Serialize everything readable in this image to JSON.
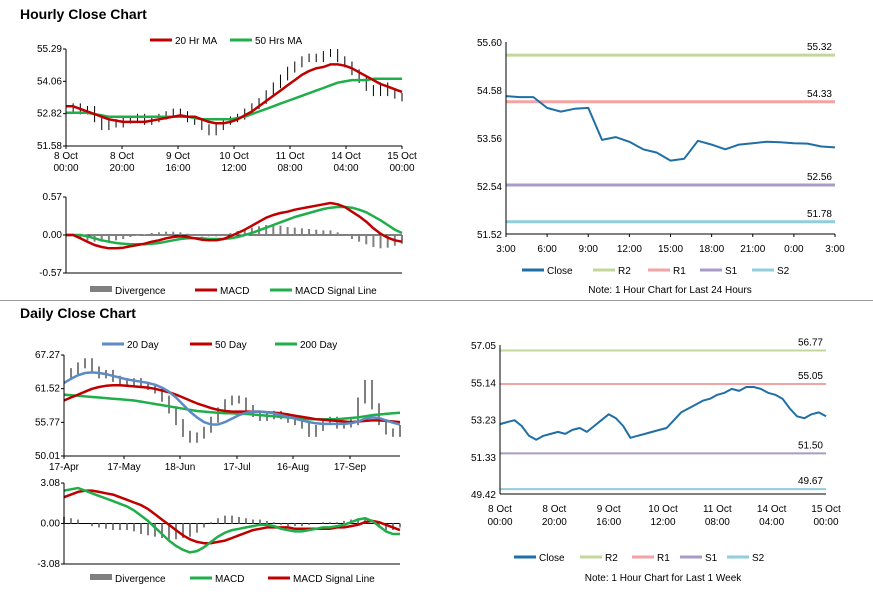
{
  "sections": {
    "hourly_title": "Hourly Close Chart",
    "daily_title": "Daily Close Chart"
  },
  "colors": {
    "red": "#c00000",
    "green": "#1fae4a",
    "blue": "#1f6fa6",
    "steel": "#5b8bc5",
    "gray": "#808080",
    "r2": "#c4d79b",
    "r1": "#f2a4a4",
    "s1": "#a99bc7",
    "s2": "#92cddc",
    "axis": "#000000"
  },
  "chart_data": [
    {
      "id": "hourly-price",
      "type": "line",
      "legend": [
        "20 Hr MA",
        "50 Hrs MA"
      ],
      "yticks": [
        "55.29",
        "54.06",
        "52.82",
        "51.58"
      ],
      "ylim": [
        51.58,
        55.29
      ],
      "xticks": [
        [
          "8 Oct",
          "00:00"
        ],
        [
          "8 Oct",
          "20:00"
        ],
        [
          "9 Oct",
          "16:00"
        ],
        [
          "10 Oct",
          "12:00"
        ],
        [
          "11 Oct",
          "08:00"
        ],
        [
          "14 Oct",
          "04:00"
        ],
        [
          "15 Oct",
          "00:00"
        ]
      ],
      "close": [
        53.0,
        53.1,
        52.9,
        53.0,
        52.6,
        52.3,
        52.5,
        52.4,
        52.55,
        52.6,
        52.7,
        52.5,
        52.6,
        52.7,
        52.8,
        52.9,
        52.8,
        52.6,
        52.5,
        52.3,
        52.1,
        52.3,
        52.5,
        52.6,
        52.7,
        52.9,
        53.1,
        53.3,
        53.6,
        53.9,
        54.2,
        54.5,
        54.7,
        54.9,
        55.0,
        54.9,
        55.1,
        55.2,
        54.9,
        54.7,
        54.4,
        54.1,
        53.8,
        53.6,
        53.9,
        53.6,
        53.5,
        53.4
      ],
      "ma20": [
        53.1,
        53.1,
        53.0,
        52.9,
        52.8,
        52.7,
        52.6,
        52.55,
        52.5,
        52.5,
        52.5,
        52.5,
        52.55,
        52.6,
        52.65,
        52.7,
        52.75,
        52.7,
        52.7,
        52.6,
        52.5,
        52.45,
        52.45,
        52.5,
        52.6,
        52.75,
        52.9,
        53.1,
        53.3,
        53.5,
        53.7,
        53.9,
        54.1,
        54.3,
        54.45,
        54.55,
        54.6,
        54.7,
        54.7,
        54.65,
        54.55,
        54.4,
        54.25,
        54.1,
        53.95,
        53.85,
        53.75,
        53.65
      ],
      "ma50": [
        52.85,
        52.85,
        52.85,
        52.85,
        52.8,
        52.75,
        52.7,
        52.7,
        52.7,
        52.7,
        52.7,
        52.7,
        52.7,
        52.7,
        52.7,
        52.7,
        52.7,
        52.7,
        52.65,
        52.6,
        52.6,
        52.6,
        52.6,
        52.6,
        52.65,
        52.7,
        52.8,
        52.9,
        53.0,
        53.1,
        53.2,
        53.3,
        53.4,
        53.5,
        53.6,
        53.7,
        53.8,
        53.9,
        54.0,
        54.05,
        54.1,
        54.1,
        54.1,
        54.15,
        54.15,
        54.15,
        54.15,
        54.15
      ]
    },
    {
      "id": "hourly-macd",
      "type": "bar",
      "legend": [
        "Divergence",
        "MACD",
        "MACD Signal Line"
      ],
      "yticks": [
        "0.57",
        "0.00",
        "-0.57"
      ],
      "ylim": [
        -0.57,
        0.57
      ],
      "macd": [
        0.0,
        0.0,
        -0.05,
        -0.1,
        -0.15,
        -0.18,
        -0.2,
        -0.2,
        -0.19,
        -0.17,
        -0.15,
        -0.13,
        -0.1,
        -0.08,
        -0.05,
        -0.03,
        -0.02,
        -0.03,
        -0.05,
        -0.07,
        -0.08,
        -0.08,
        -0.06,
        -0.02,
        0.03,
        0.08,
        0.14,
        0.2,
        0.26,
        0.3,
        0.33,
        0.35,
        0.38,
        0.4,
        0.42,
        0.44,
        0.46,
        0.48,
        0.46,
        0.42,
        0.35,
        0.28,
        0.2,
        0.1,
        0.02,
        -0.04,
        -0.08,
        -0.1
      ],
      "signal": [
        0.0,
        0.0,
        0.0,
        -0.02,
        -0.05,
        -0.08,
        -0.1,
        -0.12,
        -0.13,
        -0.14,
        -0.14,
        -0.14,
        -0.13,
        -0.12,
        -0.1,
        -0.08,
        -0.06,
        -0.05,
        -0.05,
        -0.05,
        -0.06,
        -0.06,
        -0.06,
        -0.05,
        -0.03,
        0.0,
        0.03,
        0.07,
        0.11,
        0.15,
        0.19,
        0.23,
        0.27,
        0.3,
        0.33,
        0.36,
        0.39,
        0.41,
        0.42,
        0.42,
        0.41,
        0.38,
        0.34,
        0.28,
        0.22,
        0.15,
        0.08,
        0.03
      ],
      "divergence": [
        0.0,
        0.0,
        -0.05,
        -0.08,
        -0.1,
        -0.1,
        -0.1,
        -0.08,
        -0.06,
        -0.03,
        -0.01,
        0.01,
        0.03,
        0.04,
        0.05,
        0.05,
        0.04,
        0.02,
        0.0,
        -0.02,
        -0.02,
        -0.02,
        0.0,
        0.03,
        0.06,
        0.08,
        0.11,
        0.13,
        0.15,
        0.15,
        0.14,
        0.12,
        0.11,
        0.1,
        0.09,
        0.08,
        0.07,
        0.07,
        0.04,
        0.0,
        -0.06,
        -0.1,
        -0.14,
        -0.18,
        -0.2,
        -0.19,
        -0.16,
        -0.13
      ]
    },
    {
      "id": "hourly-levels",
      "type": "line",
      "legend": [
        "Close",
        "R2",
        "R1",
        "S1",
        "S2"
      ],
      "note": "Note: 1 Hour Chart for Last 24 Hours",
      "yticks": [
        "55.60",
        "54.58",
        "53.56",
        "52.54",
        "51.52"
      ],
      "ylim": [
        51.52,
        55.6
      ],
      "xticks": [
        "3:00",
        "6:00",
        "9:00",
        "12:00",
        "15:00",
        "18:00",
        "21:00",
        "0:00",
        "3:00"
      ],
      "levels": {
        "R2": 55.32,
        "R1": 54.33,
        "S1": 52.56,
        "S2": 51.78
      },
      "level_labels": {
        "R2": "55.32",
        "R1": "54.33",
        "S1": "52.56",
        "S2": "51.78"
      },
      "close": [
        54.45,
        54.43,
        54.43,
        54.2,
        54.12,
        54.18,
        54.2,
        53.52,
        53.58,
        53.48,
        53.32,
        53.25,
        53.08,
        53.12,
        53.5,
        53.42,
        53.32,
        53.42,
        53.45,
        53.48,
        53.47,
        53.45,
        53.44,
        53.38,
        53.36
      ]
    },
    {
      "id": "daily-price",
      "type": "line",
      "legend": [
        "20 Day",
        "50 Day",
        "200 Day"
      ],
      "yticks": [
        "67.27",
        "61.52",
        "55.77",
        "50.01"
      ],
      "ylim": [
        50.01,
        67.27
      ],
      "xticks": [
        "17-Apr",
        "17-May",
        "18-Jun",
        "17-Jul",
        "16-Aug",
        "17-Sep"
      ],
      "close": [
        63.5,
        64.5,
        65.5,
        66.2,
        64.8,
        63.8,
        64.2,
        63.2,
        62.8,
        62.4,
        62.8,
        62.2,
        61.8,
        61.2,
        59.8,
        57.8,
        55.8,
        53.8,
        52.8,
        53.5,
        54.5,
        56.2,
        57.8,
        59.2,
        59.8,
        59.5,
        58.2,
        57.2,
        56.5,
        56.8,
        57.2,
        56.8,
        56.2,
        55.8,
        55.2,
        53.8,
        54.8,
        55.8,
        56.2,
        55.2,
        55.4,
        55.8,
        59.5,
        62.5,
        58.5,
        55.8,
        54.2,
        53.8,
        54.8
      ],
      "ma20": [
        62.5,
        63.2,
        63.8,
        64.2,
        64.3,
        64.2,
        64.0,
        63.7,
        63.4,
        63.1,
        62.9,
        62.7,
        62.5,
        62.2,
        61.7,
        61.0,
        60.0,
        58.8,
        57.6,
        56.6,
        55.8,
        55.4,
        55.4,
        55.8,
        56.4,
        57.0,
        57.4,
        57.6,
        57.6,
        57.5,
        57.3,
        57.0,
        56.7,
        56.4,
        56.1,
        55.8,
        55.6,
        55.5,
        55.5,
        55.5,
        55.5,
        55.6,
        55.9,
        56.4,
        56.6,
        56.5,
        56.1,
        55.7,
        55.4
      ],
      "ma50": [
        59.5,
        60.0,
        60.5,
        61.0,
        61.5,
        61.8,
        62.0,
        62.1,
        62.1,
        62.0,
        61.9,
        61.8,
        61.7,
        61.5,
        61.2,
        60.9,
        60.5,
        60.0,
        59.5,
        59.0,
        58.6,
        58.2,
        57.9,
        57.7,
        57.6,
        57.6,
        57.6,
        57.6,
        57.6,
        57.5,
        57.4,
        57.3,
        57.1,
        56.9,
        56.7,
        56.5,
        56.3,
        56.2,
        56.1,
        56.0,
        55.9,
        55.8,
        55.9,
        56.0,
        56.1,
        56.1,
        56.0,
        55.9,
        55.8
      ],
      "ma200": [
        60.5,
        60.4,
        60.3,
        60.2,
        60.1,
        60.0,
        59.9,
        59.8,
        59.7,
        59.6,
        59.5,
        59.3,
        59.1,
        58.9,
        58.7,
        58.5,
        58.3,
        58.1,
        57.9,
        57.7,
        57.6,
        57.5,
        57.4,
        57.3,
        57.3,
        57.2,
        57.2,
        57.1,
        57.0,
        56.9,
        56.8,
        56.7,
        56.6,
        56.5,
        56.4,
        56.3,
        56.3,
        56.3,
        56.3,
        56.3,
        56.4,
        56.5,
        56.6,
        56.8,
        57.0,
        57.1,
        57.2,
        57.3,
        57.4
      ]
    },
    {
      "id": "daily-macd",
      "type": "bar",
      "legend": [
        "Divergence",
        "MACD",
        "MACD Signal Line"
      ],
      "yticks": [
        "3.08",
        "0.00",
        "-3.08"
      ],
      "ylim": [
        -3.08,
        3.08
      ],
      "macd": [
        2.5,
        2.6,
        2.7,
        2.5,
        2.3,
        2.1,
        1.9,
        1.7,
        1.5,
        1.3,
        1.0,
        0.6,
        0.2,
        -0.3,
        -0.8,
        -1.3,
        -1.7,
        -2.0,
        -2.2,
        -2.1,
        -1.8,
        -1.4,
        -1.0,
        -0.7,
        -0.5,
        -0.4,
        -0.3,
        -0.2,
        -0.1,
        -0.1,
        -0.2,
        -0.4,
        -0.5,
        -0.6,
        -0.6,
        -0.5,
        -0.4,
        -0.3,
        -0.3,
        -0.2,
        -0.1,
        0.1,
        0.3,
        0.4,
        0.2,
        -0.2,
        -0.6,
        -0.8,
        -0.8
      ],
      "signal": [
        2.0,
        2.2,
        2.4,
        2.5,
        2.5,
        2.4,
        2.3,
        2.2,
        2.0,
        1.8,
        1.6,
        1.4,
        1.1,
        0.7,
        0.3,
        -0.1,
        -0.5,
        -0.9,
        -1.2,
        -1.4,
        -1.5,
        -1.5,
        -1.4,
        -1.3,
        -1.1,
        -0.9,
        -0.7,
        -0.5,
        -0.4,
        -0.3,
        -0.3,
        -0.3,
        -0.3,
        -0.4,
        -0.4,
        -0.4,
        -0.4,
        -0.4,
        -0.4,
        -0.3,
        -0.3,
        -0.2,
        -0.1,
        0.1,
        0.2,
        0.1,
        -0.1,
        -0.3,
        -0.5
      ],
      "divergence": [
        0.5,
        0.4,
        0.3,
        0.0,
        -0.2,
        -0.3,
        -0.4,
        -0.5,
        -0.5,
        -0.5,
        -0.6,
        -0.8,
        -0.9,
        -1.0,
        -1.1,
        -1.2,
        -1.2,
        -1.1,
        -1.0,
        -0.7,
        -0.3,
        0.1,
        0.4,
        0.6,
        0.6,
        0.5,
        0.4,
        0.3,
        0.3,
        0.2,
        0.1,
        -0.1,
        -0.2,
        -0.2,
        -0.2,
        -0.1,
        0.0,
        0.1,
        0.1,
        0.1,
        0.2,
        0.3,
        0.4,
        0.3,
        0.0,
        -0.3,
        -0.5,
        -0.5,
        -0.3
      ]
    },
    {
      "id": "weekly-levels",
      "type": "line",
      "legend": [
        "Close",
        "R2",
        "R1",
        "S1",
        "S2"
      ],
      "note": "Note: 1 Hour Chart for Last 1 Week",
      "yticks": [
        "57.05",
        "55.14",
        "53.23",
        "51.33",
        "49.42"
      ],
      "ylim": [
        49.42,
        57.05
      ],
      "xticks": [
        [
          "8 Oct",
          "00:00"
        ],
        [
          "8 Oct",
          "20:00"
        ],
        [
          "9 Oct",
          "16:00"
        ],
        [
          "10 Oct",
          "12:00"
        ],
        [
          "11 Oct",
          "08:00"
        ],
        [
          "14 Oct",
          "04:00"
        ],
        [
          "15 Oct",
          "00:00"
        ]
      ],
      "levels": {
        "R2": 56.77,
        "R1": 55.05,
        "S1": 51.5,
        "S2": 49.67
      },
      "level_labels": {
        "R2": "56.77",
        "R1": "55.05",
        "S1": "51.50",
        "S2": "49.67"
      },
      "close": [
        53.0,
        53.1,
        53.2,
        52.9,
        52.4,
        52.2,
        52.4,
        52.5,
        52.6,
        52.5,
        52.7,
        52.8,
        52.6,
        52.9,
        53.2,
        53.5,
        53.3,
        52.9,
        52.3,
        52.4,
        52.5,
        52.6,
        52.7,
        52.8,
        53.2,
        53.6,
        53.8,
        54.0,
        54.2,
        54.3,
        54.5,
        54.6,
        54.8,
        54.7,
        54.9,
        54.9,
        54.8,
        54.6,
        54.5,
        54.3,
        53.8,
        53.4,
        53.3,
        53.5,
        53.6,
        53.4
      ]
    }
  ]
}
